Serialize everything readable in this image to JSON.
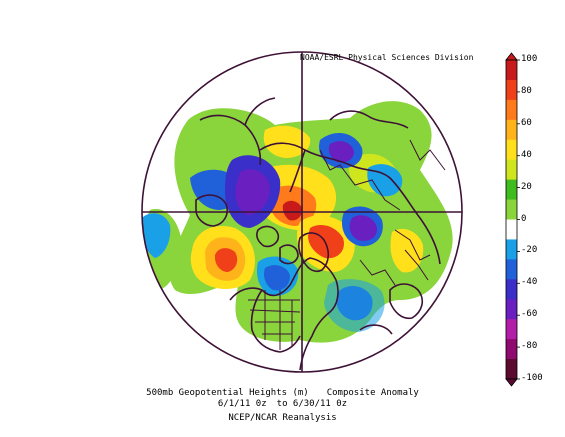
{
  "credit": "NOAA/ESRL Physical Sciences Division",
  "caption": {
    "line1_left": "500mb Geopotential Heights (m)",
    "line1_right": "Composite Anomaly",
    "line2_left": "6/1/11 0z",
    "line2_right": "to 6/30/11 0z",
    "line3": "NCEP/NCAR Reanalysis"
  },
  "colorbar": {
    "labels": [
      "100",
      "80",
      "60",
      "40",
      "20",
      "0",
      "-20",
      "-40",
      "-60",
      "-80",
      "-100"
    ],
    "colors": [
      "#5a0b2e",
      "#8e0a6e",
      "#b21ea8",
      "#6a1fc0",
      "#3a2fc8",
      "#2060d8",
      "#1aa0e6",
      "#ffffff",
      "#8ad43c",
      "#3fbd1f",
      "#cfe61e",
      "#ffe01a",
      "#ffb31a",
      "#ff7a1a",
      "#f0401a",
      "#c81a1a"
    ]
  },
  "map": {
    "projection": "north-polar-stereographic",
    "background_color": "#ffffff",
    "coast_color": "#3d1236"
  }
}
